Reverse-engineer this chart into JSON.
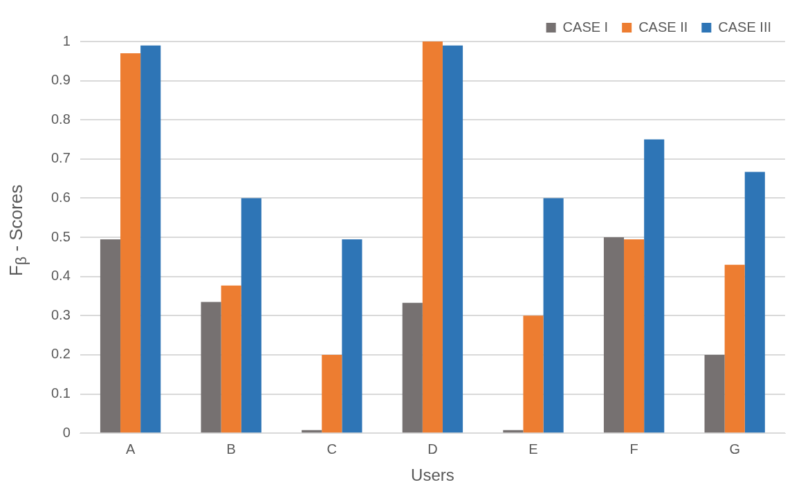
{
  "chart_data": {
    "type": "bar",
    "xlabel": "Users",
    "ylabel": "F$_{β}$ - Scores",
    "categories": [
      "A",
      "B",
      "C",
      "D",
      "E",
      "F",
      "G"
    ],
    "series": [
      {
        "name": "CASE I",
        "color": "#767171",
        "values": [
          0.495,
          0.335,
          0.008,
          0.333,
          0.008,
          0.5,
          0.2
        ]
      },
      {
        "name": "CASE II",
        "color": "#ed7d31",
        "values": [
          0.97,
          0.377,
          0.2,
          1,
          0.3,
          0.495,
          0.43
        ]
      },
      {
        "name": "CASE III",
        "color": "#2e75b6",
        "values": [
          0.99,
          0.6,
          0.495,
          0.99,
          0.6,
          0.75,
          0.667
        ]
      }
    ],
    "ylim": [
      0,
      1
    ],
    "yticks": [
      0,
      0.1,
      0.2,
      0.3,
      0.4,
      0.5,
      0.6,
      0.7,
      0.8,
      0.9,
      1
    ],
    "grid": "y",
    "legend": "top right"
  }
}
